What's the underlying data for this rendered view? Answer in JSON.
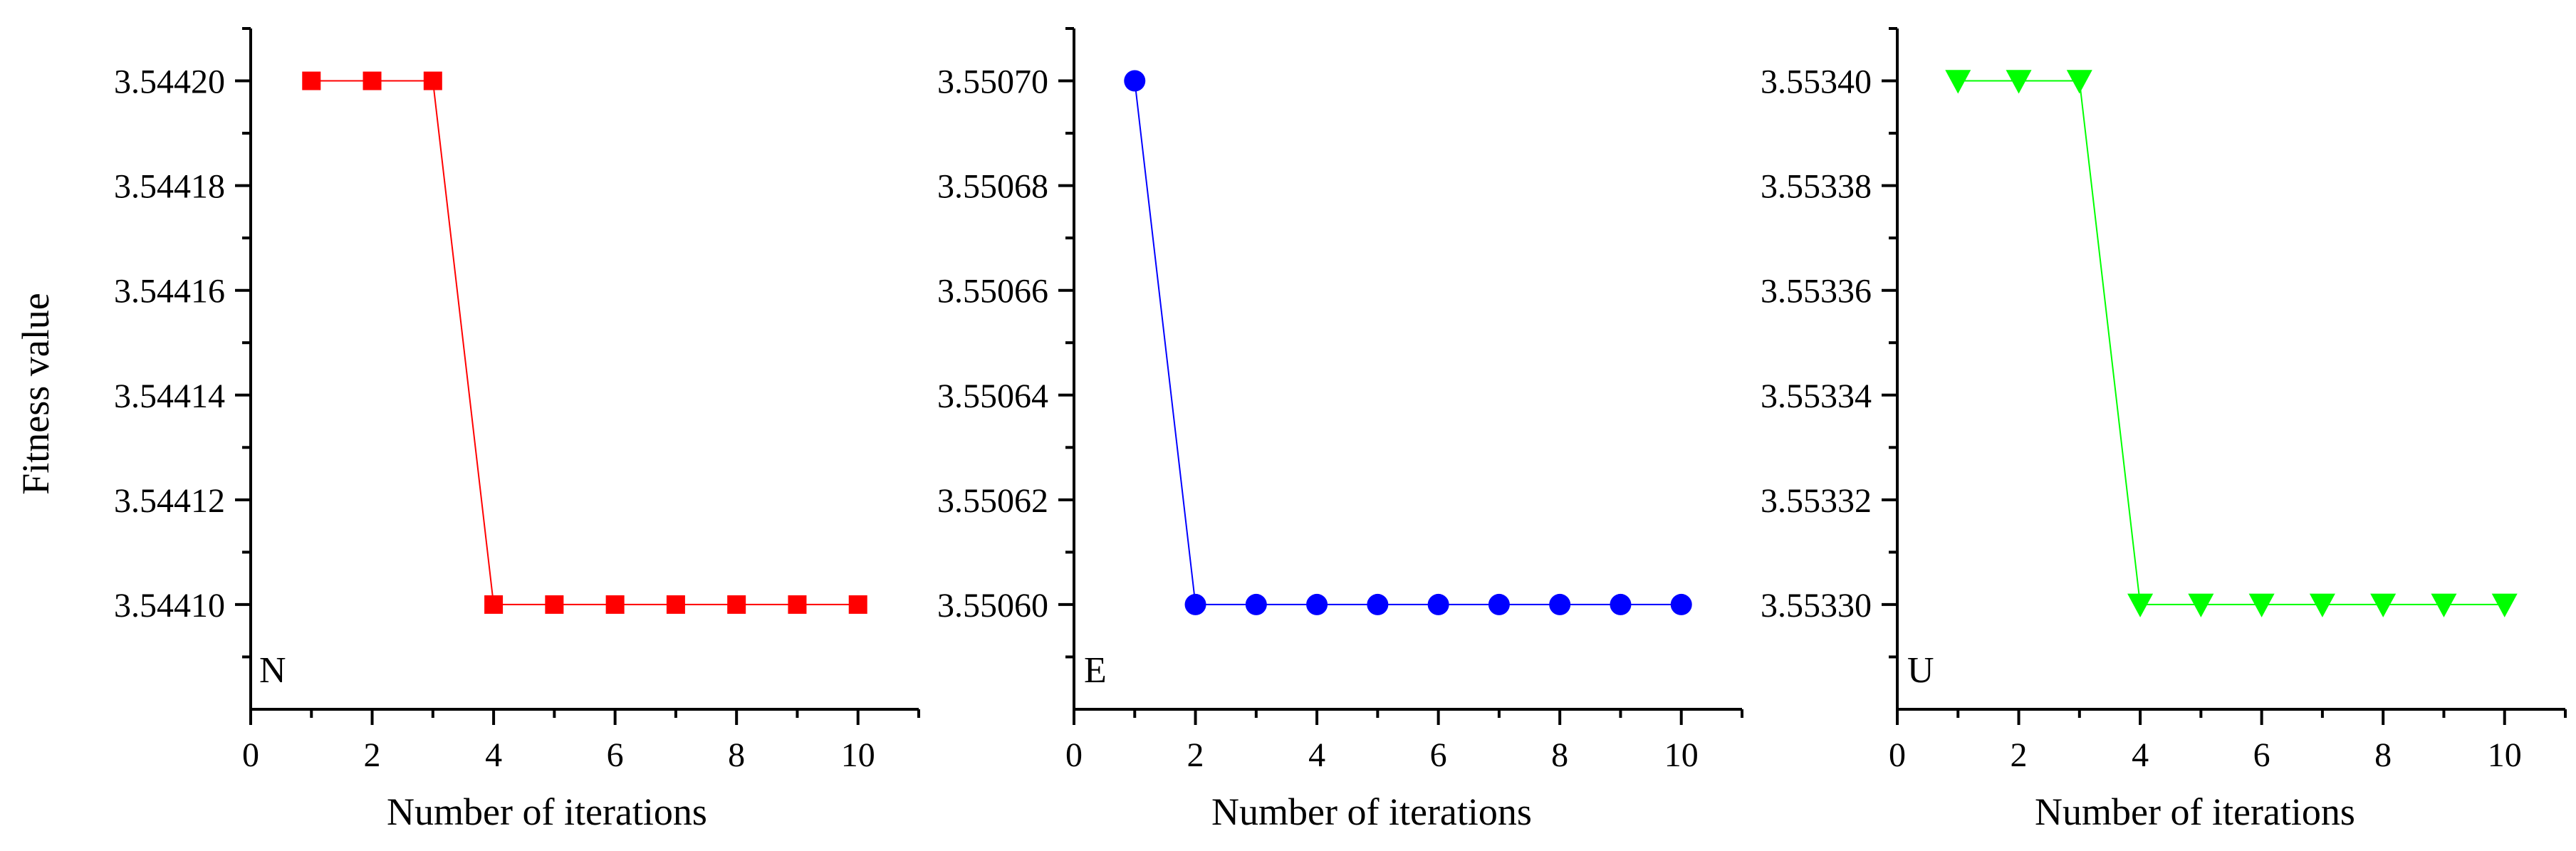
{
  "chart_data": [
    {
      "type": "line",
      "panel_label": "N",
      "xlabel": "Number of iterations",
      "ylabel": "Fitness value",
      "xlim": [
        0,
        11
      ],
      "ylim": [
        3.54408,
        3.54421
      ],
      "xticks": [
        0,
        2,
        4,
        6,
        8,
        10
      ],
      "yticks": [
        3.5441,
        3.54412,
        3.54414,
        3.54416,
        3.54418,
        3.5442
      ],
      "ytick_labels": [
        "3.54410",
        "3.54412",
        "3.54414",
        "3.54416",
        "3.54418",
        "3.54420"
      ],
      "marker": "square",
      "color": "#ff0000",
      "x": [
        1,
        2,
        3,
        4,
        5,
        6,
        7,
        8,
        9,
        10
      ],
      "y": [
        3.5442,
        3.5442,
        3.5442,
        3.5441,
        3.5441,
        3.5441,
        3.5441,
        3.5441,
        3.5441,
        3.5441
      ]
    },
    {
      "type": "line",
      "panel_label": "E",
      "xlabel": "Number of iterations",
      "ylabel": "",
      "xlim": [
        0,
        11
      ],
      "ylim": [
        3.55058,
        3.55071
      ],
      "xticks": [
        0,
        2,
        4,
        6,
        8,
        10
      ],
      "yticks": [
        3.5506,
        3.55062,
        3.55064,
        3.55066,
        3.55068,
        3.5507
      ],
      "ytick_labels": [
        "3.55060",
        "3.55062",
        "3.55064",
        "3.55066",
        "3.55068",
        "3.55070"
      ],
      "marker": "circle",
      "color": "#0000ff",
      "x": [
        1,
        2,
        3,
        4,
        5,
        6,
        7,
        8,
        9,
        10
      ],
      "y": [
        3.5507,
        3.5506,
        3.5506,
        3.5506,
        3.5506,
        3.5506,
        3.5506,
        3.5506,
        3.5506,
        3.5506
      ]
    },
    {
      "type": "line",
      "panel_label": "U",
      "xlabel": "Number of iterations",
      "ylabel": "",
      "xlim": [
        0,
        11
      ],
      "ylim": [
        3.55328,
        3.55341
      ],
      "xticks": [
        0,
        2,
        4,
        6,
        8,
        10
      ],
      "yticks": [
        3.5533,
        3.55332,
        3.55334,
        3.55336,
        3.55338,
        3.5534
      ],
      "ytick_labels": [
        "3.55330",
        "3.55332",
        "3.55334",
        "3.55336",
        "3.55338",
        "3.55340"
      ],
      "marker": "triangle-down",
      "color": "#00ff00",
      "x": [
        1,
        2,
        3,
        4,
        5,
        6,
        7,
        8,
        9,
        10
      ],
      "y": [
        3.5534,
        3.5534,
        3.5534,
        3.5533,
        3.5533,
        3.5533,
        3.5533,
        3.5533,
        3.5533,
        3.5533
      ]
    }
  ]
}
